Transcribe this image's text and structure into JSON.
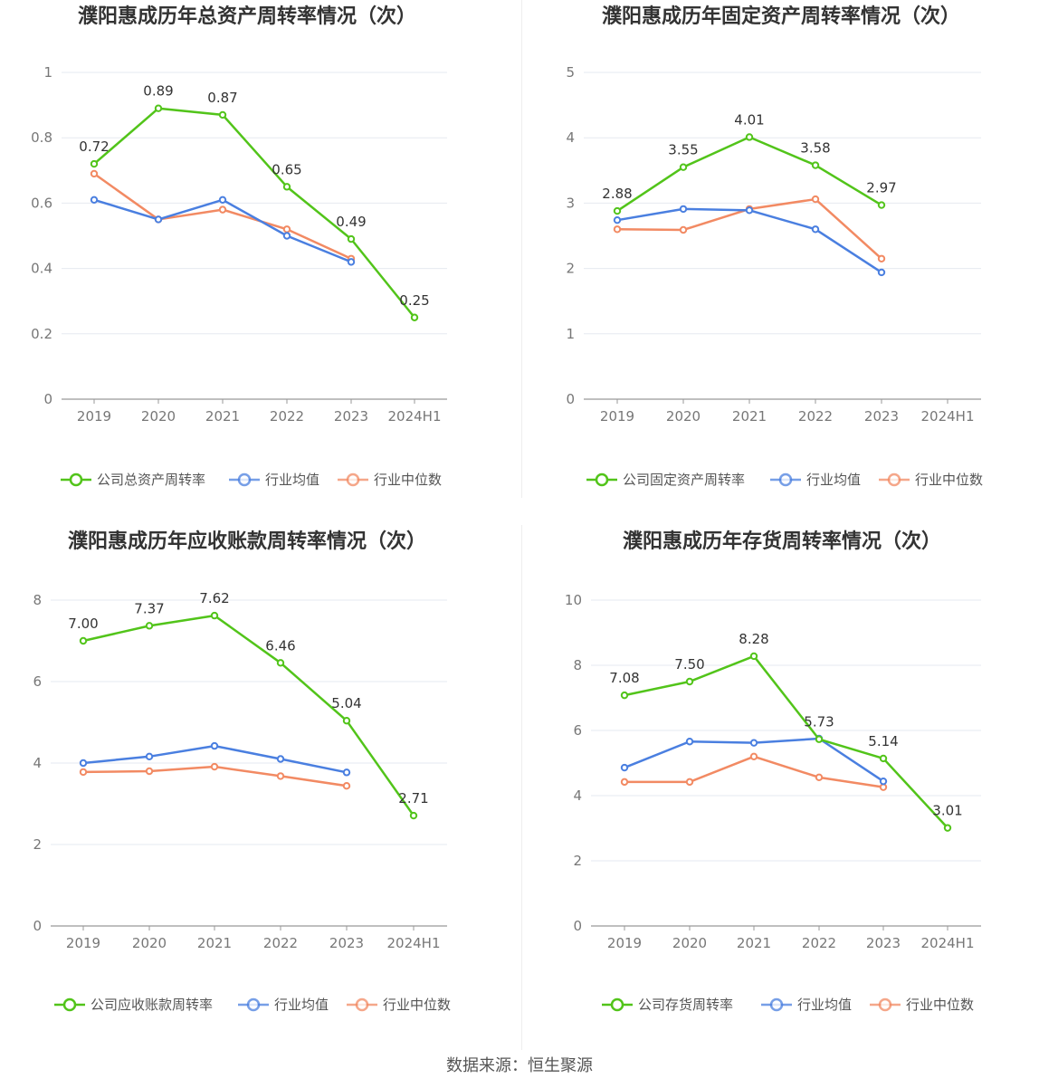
{
  "source": "数据来源：恒生聚源",
  "chart_data": [
    {
      "type": "line",
      "title": "濮阳惠成历年总资产周转率情况（次）",
      "categories": [
        "2019",
        "2020",
        "2021",
        "2022",
        "2023",
        "2024H1"
      ],
      "yticks": [
        "0",
        "0.2",
        "0.4",
        "0.6",
        "0.8",
        "1"
      ],
      "ylim": [
        0,
        1
      ],
      "series": [
        {
          "name": "公司总资产周转率",
          "color": "#52c41a",
          "values": [
            0.72,
            0.89,
            0.87,
            0.65,
            0.49,
            0.25
          ],
          "labels": [
            "0.72",
            "0.89",
            "0.87",
            "0.65",
            "0.49",
            "0.25"
          ]
        },
        {
          "name": "行业均值",
          "color": "#4a7fe0",
          "values": [
            0.61,
            0.55,
            0.61,
            0.5,
            0.42,
            null
          ]
        },
        {
          "name": "行业中位数",
          "color": "#f28a63",
          "values": [
            0.69,
            0.55,
            0.58,
            0.52,
            0.43,
            null
          ]
        }
      ]
    },
    {
      "type": "line",
      "title": "濮阳惠成历年固定资产周转率情况（次）",
      "categories": [
        "2019",
        "2020",
        "2021",
        "2022",
        "2023",
        "2024H1"
      ],
      "yticks": [
        "0",
        "1",
        "2",
        "3",
        "4",
        "5"
      ],
      "ylim": [
        0,
        5
      ],
      "series": [
        {
          "name": "公司固定资产周转率",
          "color": "#52c41a",
          "values": [
            2.88,
            3.55,
            4.01,
            3.58,
            2.97,
            null
          ],
          "labels": [
            "2.88",
            "3.55",
            "4.01",
            "3.58",
            "2.97",
            ""
          ]
        },
        {
          "name": "行业均值",
          "color": "#4a7fe0",
          "values": [
            2.74,
            2.91,
            2.89,
            2.6,
            1.94,
            null
          ]
        },
        {
          "name": "行业中位数",
          "color": "#f28a63",
          "values": [
            2.6,
            2.59,
            2.91,
            3.06,
            2.15,
            null
          ]
        }
      ]
    },
    {
      "type": "line",
      "title": "濮阳惠成历年应收账款周转率情况（次）",
      "categories": [
        "2019",
        "2020",
        "2021",
        "2022",
        "2023",
        "2024H1"
      ],
      "yticks": [
        "0",
        "2",
        "4",
        "6",
        "8"
      ],
      "ylim": [
        0,
        8
      ],
      "series": [
        {
          "name": "公司应收账款周转率",
          "color": "#52c41a",
          "values": [
            7.0,
            7.37,
            7.62,
            6.46,
            5.04,
            2.71
          ],
          "labels": [
            "7.00",
            "7.37",
            "7.62",
            "6.46",
            "5.04",
            "2.71"
          ]
        },
        {
          "name": "行业均值",
          "color": "#4a7fe0",
          "values": [
            4.0,
            4.16,
            4.42,
            4.1,
            3.77,
            null
          ]
        },
        {
          "name": "行业中位数",
          "color": "#f28a63",
          "values": [
            3.78,
            3.8,
            3.91,
            3.68,
            3.44,
            null
          ]
        }
      ]
    },
    {
      "type": "line",
      "title": "濮阳惠成历年存货周转率情况（次）",
      "categories": [
        "2019",
        "2020",
        "2021",
        "2022",
        "2023",
        "2024H1"
      ],
      "yticks": [
        "0",
        "2",
        "4",
        "6",
        "8",
        "10"
      ],
      "ylim": [
        0,
        10
      ],
      "series": [
        {
          "name": "公司存货周转率",
          "color": "#52c41a",
          "values": [
            7.08,
            7.5,
            8.28,
            5.73,
            5.14,
            3.01
          ],
          "labels": [
            "7.08",
            "7.50",
            "8.28",
            "5.73",
            "5.14",
            "3.01"
          ]
        },
        {
          "name": "行业均值",
          "color": "#4a7fe0",
          "values": [
            4.86,
            5.66,
            5.62,
            5.75,
            4.44,
            null
          ]
        },
        {
          "name": "行业中位数",
          "color": "#f28a63",
          "values": [
            4.42,
            4.42,
            5.2,
            4.56,
            4.26,
            null
          ]
        }
      ]
    }
  ]
}
